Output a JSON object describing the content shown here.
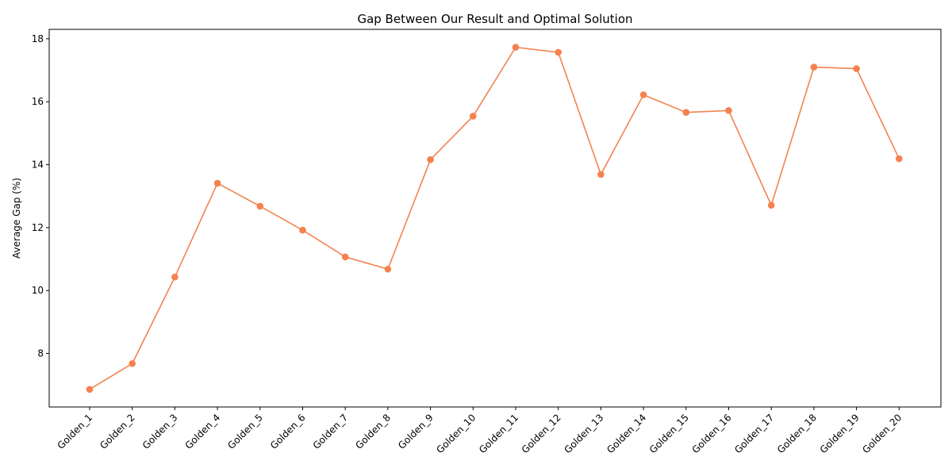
{
  "chart_data": {
    "type": "line",
    "title": "Gap Between Our Result and Optimal Solution",
    "xlabel": "",
    "ylabel": "Average Gap (%)",
    "categories": [
      "Golden_1",
      "Golden_2",
      "Golden_3",
      "Golden_4",
      "Golden_5",
      "Golden_6",
      "Golden_7",
      "Golden_8",
      "Golden_9",
      "Golden_10",
      "Golden_11",
      "Golden_12",
      "Golden_13",
      "Golden_14",
      "Golden_15",
      "Golden_16",
      "Golden_17",
      "Golden_18",
      "Golden_19",
      "Golden_20"
    ],
    "series": [
      {
        "values": [
          6.86,
          7.68,
          10.43,
          13.41,
          12.68,
          11.92,
          11.07,
          10.68,
          14.16,
          15.54,
          17.73,
          17.57,
          13.69,
          16.22,
          15.66,
          15.72,
          12.71,
          17.1,
          17.05,
          14.19
        ],
        "color": "#f4824f"
      }
    ],
    "yticks": [
      8,
      10,
      12,
      14,
      16,
      18
    ],
    "ylim": [
      6.3,
      18.3
    ],
    "grid": false,
    "legend": "none"
  }
}
